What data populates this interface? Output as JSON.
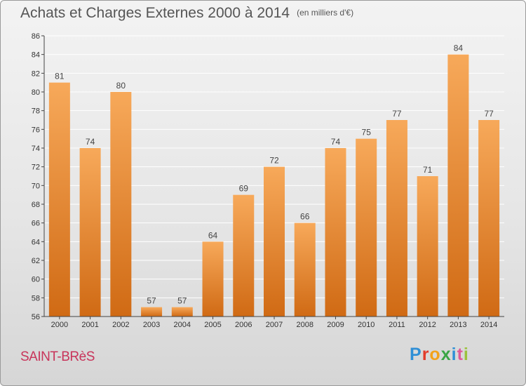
{
  "title": "Achats et Charges Externes 2000 à 2014",
  "unit": "(en milliers d'€)",
  "city": "SAINT-BRèS",
  "logo": [
    "P",
    "r",
    "o",
    "x",
    "i",
    "t",
    "i"
  ],
  "colors": {
    "bar_light": "#f7a95a",
    "bar_dark": "#d46e17",
    "axis": "#444444",
    "grid": "#ffffff",
    "city": "#c8345a"
  },
  "chart_data": {
    "type": "bar",
    "categories": [
      "2000",
      "2001",
      "2002",
      "2003",
      "2004",
      "2005",
      "2006",
      "2007",
      "2008",
      "2009",
      "2010",
      "2011",
      "2012",
      "2013",
      "2014"
    ],
    "values": [
      81,
      74,
      80,
      57,
      57,
      64,
      69,
      72,
      66,
      74,
      75,
      77,
      71,
      84,
      77
    ],
    "ylim": [
      56,
      86
    ],
    "yticks": [
      56,
      58,
      60,
      62,
      64,
      66,
      68,
      70,
      72,
      74,
      76,
      78,
      80,
      82,
      84,
      86
    ],
    "grid": true,
    "xlabel": "",
    "ylabel": ""
  }
}
